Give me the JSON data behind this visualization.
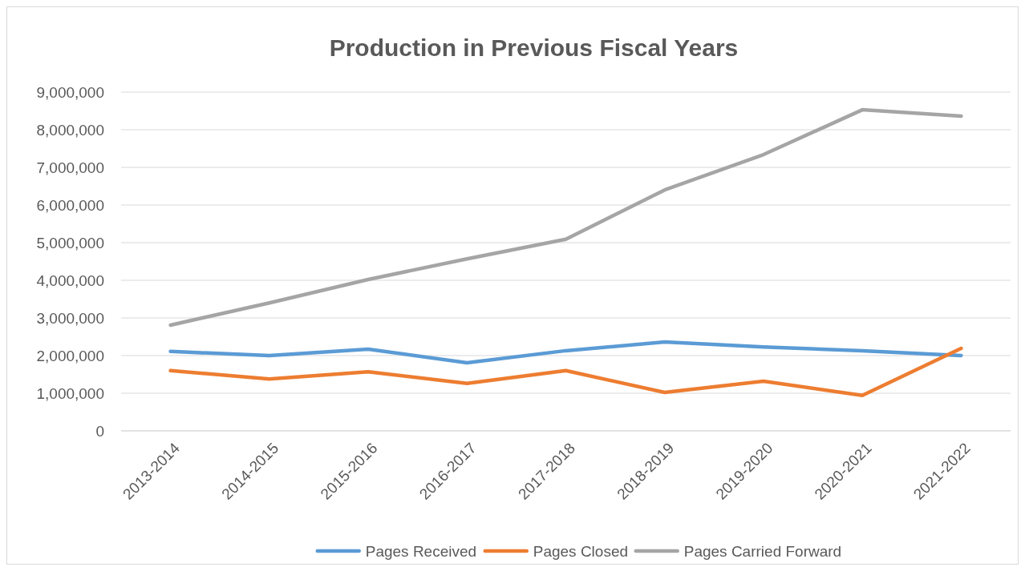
{
  "chart_data": {
    "type": "line",
    "title": "Production in Previous Fiscal Years",
    "categories": [
      "2013-2014",
      "2014-2015",
      "2015-2016",
      "2016-2017",
      "2017-2018",
      "2018-2019",
      "2019-2020",
      "2020-2021",
      "2021-2022"
    ],
    "series": [
      {
        "name": "Pages Received",
        "color": "#5b9bd5",
        "values": [
          2110000,
          2000000,
          2170000,
          1810000,
          2130000,
          2360000,
          2230000,
          2130000,
          2000000
        ]
      },
      {
        "name": "Pages Closed",
        "color": "#ed7d31",
        "values": [
          1600000,
          1380000,
          1570000,
          1260000,
          1600000,
          1020000,
          1320000,
          940000,
          2190000
        ]
      },
      {
        "name": "Pages Carried Forward",
        "color": "#a5a5a5",
        "values": [
          2810000,
          3400000,
          4020000,
          4570000,
          5090000,
          6400000,
          7340000,
          8530000,
          8360000
        ]
      }
    ],
    "ylim": [
      0,
      9000000
    ],
    "yticks": [
      {
        "value": 0,
        "label": "0"
      },
      {
        "value": 1000000,
        "label": "1,000,000"
      },
      {
        "value": 2000000,
        "label": "2,000,000"
      },
      {
        "value": 3000000,
        "label": "3,000,000"
      },
      {
        "value": 4000000,
        "label": "4,000,000"
      },
      {
        "value": 5000000,
        "label": "5,000,000"
      },
      {
        "value": 6000000,
        "label": "6,000,000"
      },
      {
        "value": 7000000,
        "label": "7,000,000"
      },
      {
        "value": 8000000,
        "label": "8,000,000"
      },
      {
        "value": 9000000,
        "label": "9,000,000"
      }
    ],
    "grid": "y",
    "legend": "bottom",
    "marker": "none",
    "line_style": "solid"
  }
}
